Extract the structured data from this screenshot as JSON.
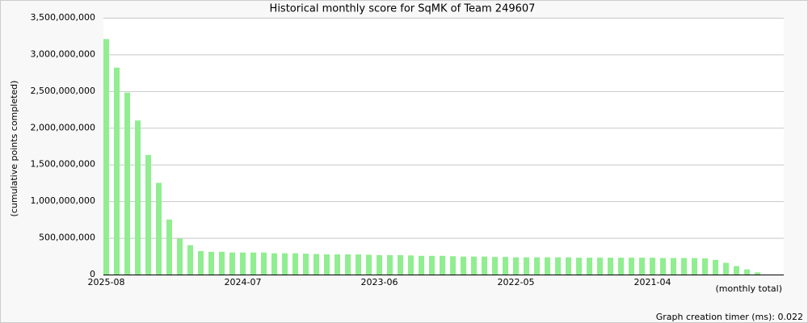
{
  "chart_data": {
    "type": "bar",
    "title": "Historical monthly score for SqMK of Team 249607",
    "y_label": "(cumulative points completed)",
    "x_label": "(monthly total)",
    "footer": "Graph creation timer (ms): 0.022",
    "color": "#90ee90",
    "grid": true,
    "categories": [
      "2025-08",
      null,
      null,
      null,
      null,
      null,
      null,
      null,
      null,
      null,
      null,
      null,
      null,
      "2024-07",
      null,
      null,
      null,
      null,
      null,
      null,
      null,
      null,
      null,
      null,
      null,
      null,
      "2023-06",
      null,
      null,
      null,
      null,
      null,
      null,
      null,
      null,
      null,
      null,
      null,
      null,
      "2022-05",
      null,
      null,
      null,
      null,
      null,
      null,
      null,
      null,
      null,
      null,
      null,
      null,
      "2021-04",
      null,
      null,
      null,
      null,
      null,
      null,
      null,
      null,
      null,
      null
    ],
    "values": [
      3210000000,
      2820000000,
      2480000000,
      2100000000,
      1630000000,
      1250000000,
      750000000,
      490000000,
      400000000,
      320000000,
      310000000,
      310000000,
      300000000,
      300000000,
      300000000,
      300000000,
      290000000,
      290000000,
      290000000,
      285000000,
      280000000,
      275000000,
      275000000,
      275000000,
      275000000,
      270000000,
      265000000,
      265000000,
      265000000,
      260000000,
      255000000,
      255000000,
      255000000,
      250000000,
      245000000,
      245000000,
      245000000,
      240000000,
      240000000,
      235000000,
      235000000,
      235000000,
      235000000,
      235000000,
      235000000,
      230000000,
      230000000,
      230000000,
      230000000,
      230000000,
      230000000,
      230000000,
      230000000,
      225000000,
      225000000,
      225000000,
      225000000,
      220000000,
      200000000,
      160000000,
      115000000,
      70000000,
      30000000
    ],
    "ylim": [
      0,
      3500000000
    ],
    "yticks": [
      0,
      {
        "value": 500000000,
        "label": "500,000,000"
      },
      {
        "value": 1000000000,
        "label": "1,000,000,000"
      },
      {
        "value": 1500000000,
        "label": "1,500,000,000"
      },
      {
        "value": 2000000000,
        "label": "2,000,000,000"
      },
      {
        "value": 2500000000,
        "label": "2,500,000,000"
      },
      {
        "value": 3000000000,
        "label": "3,000,000,000"
      },
      {
        "value": 3500000000,
        "label": "3,500,000,000"
      }
    ]
  }
}
